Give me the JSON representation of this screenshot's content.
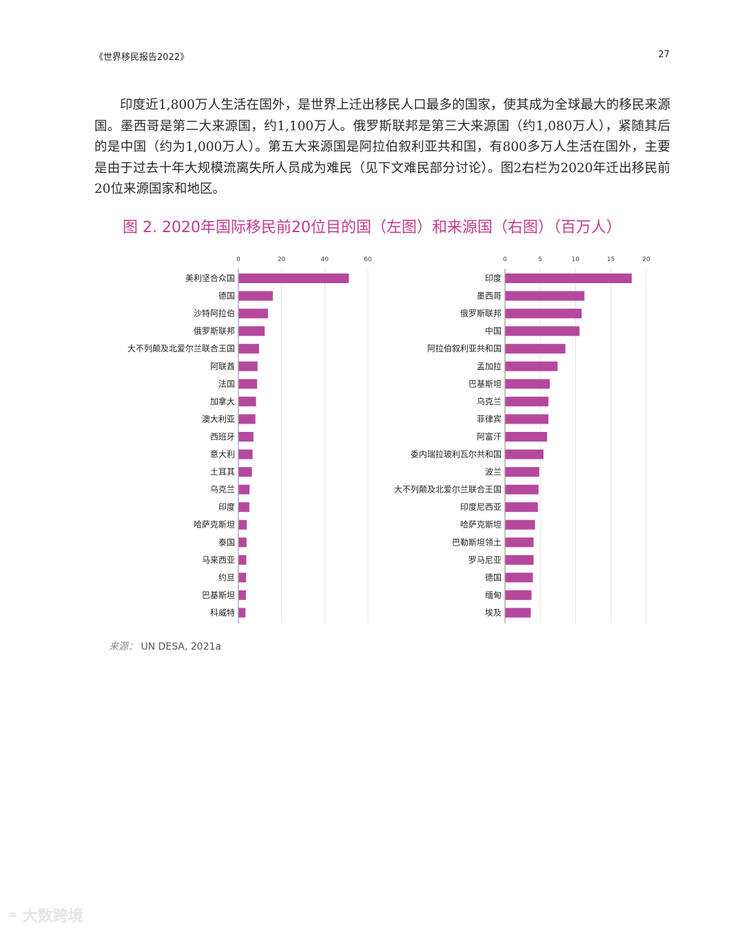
{
  "header": {
    "title": "《世界移民报告2022》",
    "page_number": "27"
  },
  "body_paragraph": "印度近1,800万人生活在国外，是世界上迁出移民人口最多的国家，使其成为全球最大的移民来源国。墨西哥是第二大来源国，约1,100万人。俄罗斯联邦是第三大来源国（约1,080万人），紧随其后的是中国（约为1,000万人）。第五大来源国是阿拉伯叙利亚共和国，有800多万人生活在国外，主要是由于过去十年大规模流离失所人员成为难民（见下文难民部分讨论）。图2右栏为2020年迁出移民前20位来源国家和地区。",
  "figure": {
    "title": "图 2. 2020年国际移民前20位目的国（左图）和来源国（右图）（百万人）"
  },
  "colors": {
    "bar": "#b5489e",
    "title": "#c23b8e",
    "grid": "#e4e4e4",
    "axis": "#9a9a9a"
  },
  "chart_data": [
    {
      "type": "bar",
      "orientation": "horizontal",
      "title": "",
      "xlim": [
        0,
        60
      ],
      "ticks": [
        0,
        20,
        40,
        60
      ],
      "grid": true,
      "categories": [
        "美利坚合众国",
        "德国",
        "沙特阿拉伯",
        "俄罗斯联邦",
        "大不列颠及北爱尔兰联合王国",
        "阿联酋",
        "法国",
        "加拿大",
        "澳大利亚",
        "西班牙",
        "意大利",
        "土耳其",
        "乌克兰",
        "印度",
        "哈萨克斯坦",
        "泰国",
        "马来西亚",
        "约旦",
        "巴基斯坦",
        "科威特"
      ],
      "values": [
        51,
        15.8,
        13.5,
        12,
        9.4,
        8.7,
        8.5,
        8.0,
        7.7,
        6.8,
        6.4,
        6.1,
        5.0,
        4.9,
        3.7,
        3.6,
        3.5,
        3.4,
        3.3,
        3.1
      ]
    },
    {
      "type": "bar",
      "orientation": "horizontal",
      "title": "",
      "xlim": [
        0,
        20
      ],
      "ticks": [
        0,
        5,
        10,
        15,
        20
      ],
      "grid": true,
      "categories": [
        "印度",
        "墨西哥",
        "俄罗斯联邦",
        "中国",
        "阿拉伯叙利亚共和国",
        "孟加拉",
        "巴基斯坦",
        "乌克兰",
        "菲律宾",
        "阿富汗",
        "委内瑞拉玻利瓦尔共和国",
        "波兰",
        "大不列颠及北爱尔兰联合王国",
        "印度尼西亚",
        "哈萨克斯坦",
        "巴勒斯坦领土",
        "罗马尼亚",
        "德国",
        "缅甸",
        "埃及"
      ],
      "values": [
        17.9,
        11.2,
        10.8,
        10.5,
        8.5,
        7.4,
        6.3,
        6.1,
        6.1,
        5.9,
        5.4,
        4.8,
        4.7,
        4.6,
        4.2,
        4.0,
        4.0,
        3.9,
        3.7,
        3.6
      ]
    }
  ],
  "source": {
    "label": "来源：",
    "text": "UN DESA, 2021a"
  },
  "watermark": {
    "icon": "brand-logo-icon",
    "text": "大数跨境"
  }
}
